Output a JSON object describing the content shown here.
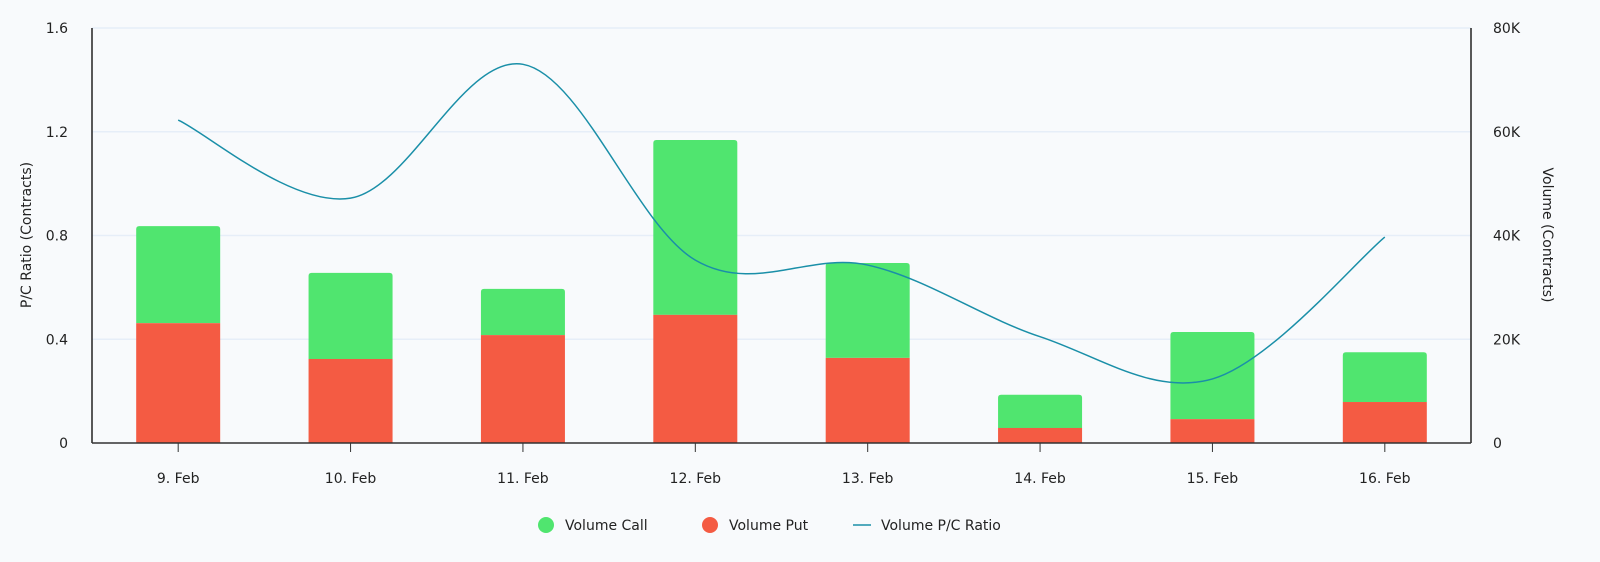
{
  "chart_data": {
    "type": "bar",
    "stacked": true,
    "categories": [
      "9. Feb",
      "10. Feb",
      "11. Feb",
      "12. Feb",
      "13. Feb",
      "14. Feb",
      "15. Feb",
      "16. Feb"
    ],
    "series": [
      {
        "name": "Volume Call",
        "type": "bar",
        "axis": "right",
        "color": "#50e56f",
        "values": [
          18700,
          16600,
          8900,
          33700,
          18300,
          6400,
          16800,
          9600
        ]
      },
      {
        "name": "Volume Put",
        "type": "bar",
        "axis": "right",
        "color": "#f45b43",
        "values": [
          23100,
          16200,
          20800,
          24700,
          16400,
          2900,
          4600,
          7900
        ]
      },
      {
        "name": "Volume P/C Ratio",
        "type": "line",
        "axis": "left",
        "color": "#1a8fa8",
        "smooth": true,
        "values": [
          1.245,
          0.944,
          1.46,
          0.705,
          0.686,
          0.41,
          0.247,
          0.794
        ]
      }
    ],
    "left_axis": {
      "title": "P/C Ratio (Contracts)",
      "range": [
        0,
        1.6
      ],
      "ticks": [
        "0",
        "0.4",
        "0.8",
        "1.2",
        "1.6"
      ]
    },
    "right_axis": {
      "title": "Volume (Contracts)",
      "range": [
        0,
        80000
      ],
      "ticks": [
        "0",
        "20K",
        "40K",
        "60K",
        "80K"
      ]
    },
    "grid": true,
    "legend_placement": "bottom-center"
  }
}
